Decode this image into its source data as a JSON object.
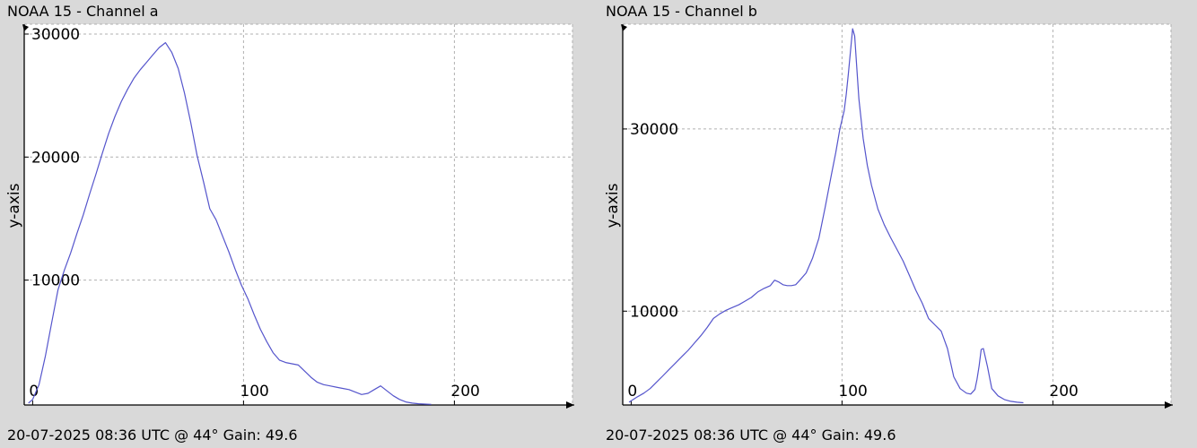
{
  "chart_data": [
    {
      "type": "line",
      "title": "NOAA 15 - Channel a",
      "footer": "20-07-2025 08:36 UTC @ 44° Gain: 49.6",
      "ylabel": "y-axis",
      "xlim": [
        -4,
        256
      ],
      "ylim": [
        -150,
        30800
      ],
      "xticks": [
        0,
        100,
        200
      ],
      "yticks": [
        10000,
        20000,
        30000
      ],
      "series": [
        {
          "color": "#5555cc",
          "x": [
            -2,
            0,
            3,
            6,
            9,
            12,
            15,
            18,
            21,
            24,
            27,
            30,
            33,
            36,
            39,
            42,
            45,
            48,
            51,
            54,
            57,
            60,
            63,
            66,
            69,
            72,
            75,
            78,
            81,
            84,
            87,
            90,
            93,
            96,
            99,
            102,
            105,
            108,
            111,
            114,
            117,
            120,
            123,
            126,
            129,
            132,
            135,
            138,
            141,
            144,
            147,
            150,
            153,
            156,
            159,
            162,
            165,
            168,
            171,
            174,
            177,
            180,
            183,
            186,
            189
          ],
          "y": [
            0,
            300,
            1500,
            3800,
            6500,
            9200,
            10800,
            12200,
            13800,
            15300,
            17000,
            18600,
            20300,
            21900,
            23300,
            24500,
            25500,
            26400,
            27100,
            27700,
            28300,
            28900,
            29300,
            28500,
            27200,
            25200,
            22800,
            20100,
            18000,
            15800,
            14900,
            13600,
            12300,
            10900,
            9600,
            8500,
            7200,
            6000,
            5000,
            4100,
            3500,
            3300,
            3200,
            3100,
            2600,
            2100,
            1700,
            1500,
            1400,
            1300,
            1200,
            1100,
            900,
            700,
            800,
            1100,
            1400,
            1000,
            600,
            300,
            100,
            0,
            -50,
            -80,
            -100
          ]
        }
      ]
    },
    {
      "type": "line",
      "title": "NOAA 15 - Channel b",
      "footer": "20-07-2025 08:36 UTC @ 44° Gain: 49.6",
      "ylabel": "y-axis",
      "xlim": [
        -4,
        256
      ],
      "ylim": [
        -300,
        41500
      ],
      "xticks": [
        0,
        100,
        200
      ],
      "yticks": [
        10000,
        30000
      ],
      "series": [
        {
          "color": "#5555cc",
          "x": [
            -1,
            3,
            6,
            9,
            12,
            15,
            18,
            21,
            24,
            27,
            30,
            33,
            36,
            39,
            42,
            45,
            48,
            51,
            54,
            57,
            60,
            63,
            66,
            68,
            70,
            72,
            74,
            76,
            78,
            80,
            83,
            86,
            89,
            92,
            95,
            97,
            99,
            101,
            102,
            103,
            104,
            105,
            106,
            107,
            108,
            110,
            112,
            114,
            117,
            120,
            123,
            126,
            129,
            132,
            135,
            138,
            141,
            144,
            147,
            150,
            153,
            156,
            159,
            161,
            163,
            164,
            165,
            166,
            167,
            169,
            171,
            174,
            177,
            180,
            183,
            186
          ],
          "y": [
            0,
            600,
            1000,
            1500,
            2200,
            2900,
            3600,
            4300,
            5000,
            5700,
            6500,
            7300,
            8200,
            9200,
            9700,
            10100,
            10400,
            10700,
            11100,
            11500,
            12100,
            12500,
            12800,
            13400,
            13200,
            12900,
            12800,
            12800,
            12900,
            13400,
            14200,
            15800,
            18000,
            21400,
            25000,
            27400,
            30000,
            32000,
            33800,
            36000,
            38500,
            41000,
            40200,
            36800,
            33300,
            29000,
            26000,
            23800,
            21200,
            19500,
            18100,
            16800,
            15500,
            13900,
            12300,
            10900,
            9200,
            8500,
            7800,
            5900,
            2800,
            1500,
            1000,
            900,
            1400,
            2500,
            4000,
            5800,
            5900,
            3900,
            1500,
            700,
            300,
            100,
            0,
            -50
          ]
        }
      ]
    }
  ]
}
